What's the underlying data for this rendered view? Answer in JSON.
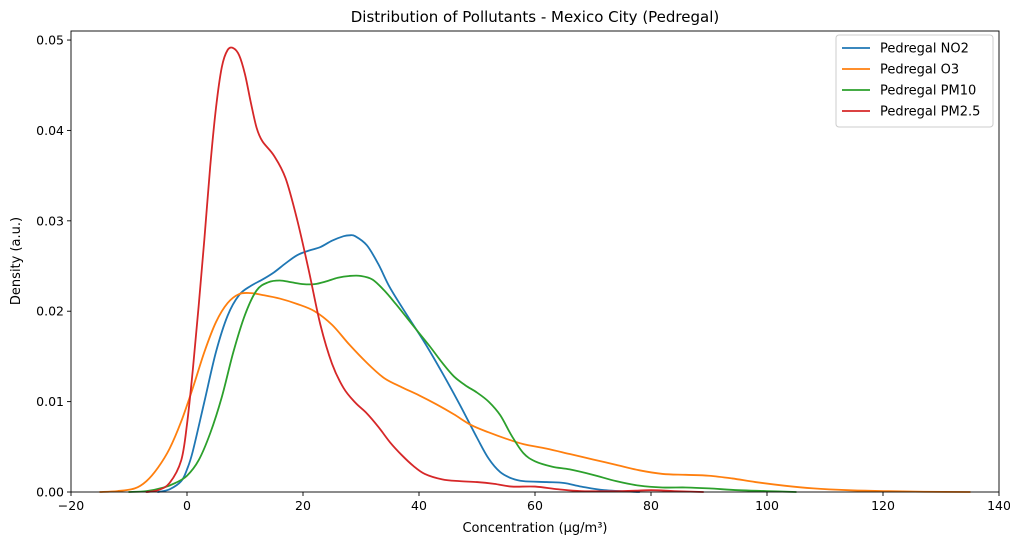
{
  "chart_data": {
    "type": "line",
    "title": "Distribution of Pollutants - Mexico City (Pedregal)",
    "xlabel": "Concentration (μg/m³)",
    "ylabel": "Density (a.u.)",
    "xlim": [
      -20,
      140
    ],
    "ylim": [
      0,
      0.051
    ],
    "xticks": [
      -20,
      0,
      20,
      40,
      60,
      80,
      100,
      120,
      140
    ],
    "xtick_labels": [
      "−20",
      "0",
      "20",
      "40",
      "60",
      "80",
      "100",
      "120",
      "140"
    ],
    "yticks": [
      0,
      0.01,
      0.02,
      0.03,
      0.04,
      0.05
    ],
    "ytick_labels": [
      "0.00",
      "0.01",
      "0.02",
      "0.03",
      "0.04",
      "0.05"
    ],
    "grid": false,
    "legend_position": "top-right",
    "series": [
      {
        "name": "Pedregal NO2",
        "color": "#1f77b4",
        "points": [
          [
            -5,
            0
          ],
          [
            -3,
            0.0003
          ],
          [
            -1,
            0.0012
          ],
          [
            0,
            0.0025
          ],
          [
            1,
            0.0045
          ],
          [
            3,
            0.01
          ],
          [
            5,
            0.0155
          ],
          [
            7,
            0.0195
          ],
          [
            9,
            0.0218
          ],
          [
            11,
            0.0228
          ],
          [
            13,
            0.0235
          ],
          [
            15,
            0.0243
          ],
          [
            17,
            0.0253
          ],
          [
            19,
            0.0262
          ],
          [
            21,
            0.0267
          ],
          [
            23,
            0.0271
          ],
          [
            25,
            0.0278
          ],
          [
            27,
            0.0283
          ],
          [
            28,
            0.0284
          ],
          [
            29,
            0.0283
          ],
          [
            31,
            0.0273
          ],
          [
            33,
            0.0252
          ],
          [
            35,
            0.0226
          ],
          [
            38,
            0.0195
          ],
          [
            41,
            0.0165
          ],
          [
            44,
            0.0132
          ],
          [
            47,
            0.0097
          ],
          [
            50,
            0.006
          ],
          [
            52,
            0.0037
          ],
          [
            54,
            0.0022
          ],
          [
            56,
            0.0015
          ],
          [
            58,
            0.0012
          ],
          [
            62,
            0.0011
          ],
          [
            65,
            0.001
          ],
          [
            68,
            0.0006
          ],
          [
            72,
            0.0002
          ],
          [
            78,
            0
          ]
        ]
      },
      {
        "name": "Pedregal O3",
        "color": "#ff7f0e",
        "points": [
          [
            -15,
            0
          ],
          [
            -12,
            0.0001
          ],
          [
            -9,
            0.0004
          ],
          [
            -7,
            0.0012
          ],
          [
            -5,
            0.0027
          ],
          [
            -3,
            0.0048
          ],
          [
            -1,
            0.0078
          ],
          [
            1,
            0.0115
          ],
          [
            3,
            0.0155
          ],
          [
            5,
            0.0188
          ],
          [
            7,
            0.0209
          ],
          [
            9,
            0.0219
          ],
          [
            11,
            0.022
          ],
          [
            13,
            0.0218
          ],
          [
            16,
            0.0214
          ],
          [
            19,
            0.0208
          ],
          [
            22,
            0.02
          ],
          [
            25,
            0.0185
          ],
          [
            28,
            0.0163
          ],
          [
            31,
            0.0143
          ],
          [
            34,
            0.0126
          ],
          [
            37,
            0.0116
          ],
          [
            40,
            0.0107
          ],
          [
            43,
            0.0097
          ],
          [
            46,
            0.0086
          ],
          [
            49,
            0.0074
          ],
          [
            52,
            0.0066
          ],
          [
            55,
            0.0059
          ],
          [
            58,
            0.0053
          ],
          [
            62,
            0.0048
          ],
          [
            66,
            0.0042
          ],
          [
            70,
            0.0036
          ],
          [
            74,
            0.003
          ],
          [
            78,
            0.0024
          ],
          [
            82,
            0.002
          ],
          [
            86,
            0.0019
          ],
          [
            90,
            0.0018
          ],
          [
            94,
            0.0015
          ],
          [
            98,
            0.0011
          ],
          [
            103,
            0.0007
          ],
          [
            108,
            0.0004
          ],
          [
            114,
            0.0002
          ],
          [
            120,
            0.0001
          ],
          [
            127,
            3e-05
          ],
          [
            135,
            0
          ]
        ]
      },
      {
        "name": "Pedregal PM10",
        "color": "#2ca02c",
        "points": [
          [
            -10,
            0
          ],
          [
            -7,
            0.0001
          ],
          [
            -4,
            0.0005
          ],
          [
            -2,
            0.001
          ],
          [
            0,
            0.0018
          ],
          [
            2,
            0.0035
          ],
          [
            4,
            0.0065
          ],
          [
            6,
            0.0105
          ],
          [
            8,
            0.0155
          ],
          [
            10,
            0.0196
          ],
          [
            12,
            0.0223
          ],
          [
            14,
            0.0232
          ],
          [
            16,
            0.0234
          ],
          [
            18,
            0.0232
          ],
          [
            20,
            0.023
          ],
          [
            22,
            0.023
          ],
          [
            24,
            0.0233
          ],
          [
            26,
            0.0237
          ],
          [
            28,
            0.0239
          ],
          [
            30,
            0.0239
          ],
          [
            32,
            0.0235
          ],
          [
            34,
            0.0223
          ],
          [
            36,
            0.0208
          ],
          [
            38,
            0.0192
          ],
          [
            40,
            0.0176
          ],
          [
            42,
            0.016
          ],
          [
            44,
            0.0143
          ],
          [
            46,
            0.0128
          ],
          [
            48,
            0.0118
          ],
          [
            50,
            0.011
          ],
          [
            52,
            0.01
          ],
          [
            54,
            0.0085
          ],
          [
            56,
            0.0062
          ],
          [
            58,
            0.0043
          ],
          [
            60,
            0.0034
          ],
          [
            63,
            0.0028
          ],
          [
            66,
            0.0025
          ],
          [
            70,
            0.0019
          ],
          [
            74,
            0.0012
          ],
          [
            78,
            0.0007
          ],
          [
            82,
            0.0005
          ],
          [
            86,
            0.0005
          ],
          [
            90,
            0.0004
          ],
          [
            95,
            0.0002
          ],
          [
            100,
            0.0001
          ],
          [
            105,
            0
          ]
        ]
      },
      {
        "name": "Pedregal PM2.5",
        "color": "#d62728",
        "points": [
          [
            -7,
            0
          ],
          [
            -5,
            0.0002
          ],
          [
            -3,
            0.001
          ],
          [
            -1,
            0.0035
          ],
          [
            0,
            0.0075
          ],
          [
            1,
            0.0135
          ],
          [
            2,
            0.0205
          ],
          [
            3,
            0.028
          ],
          [
            4,
            0.036
          ],
          [
            5,
            0.0425
          ],
          [
            6,
            0.047
          ],
          [
            7,
            0.0489
          ],
          [
            8,
            0.0491
          ],
          [
            9,
            0.0483
          ],
          [
            10,
            0.0462
          ],
          [
            11,
            0.0431
          ],
          [
            12,
            0.0403
          ],
          [
            13,
            0.0388
          ],
          [
            15,
            0.0372
          ],
          [
            17,
            0.0347
          ],
          [
            19,
            0.0301
          ],
          [
            21,
            0.0245
          ],
          [
            23,
            0.0185
          ],
          [
            25,
            0.0142
          ],
          [
            27,
            0.0115
          ],
          [
            29,
            0.0099
          ],
          [
            31,
            0.0087
          ],
          [
            33,
            0.0072
          ],
          [
            35,
            0.0055
          ],
          [
            37,
            0.0041
          ],
          [
            39,
            0.0029
          ],
          [
            41,
            0.002
          ],
          [
            44,
            0.0014
          ],
          [
            47,
            0.0012
          ],
          [
            50,
            0.0011
          ],
          [
            53,
            0.0009
          ],
          [
            56,
            0.0006
          ],
          [
            60,
            0.0006
          ],
          [
            64,
            0.0003
          ],
          [
            68,
            0.0001
          ],
          [
            75,
            0.0001
          ],
          [
            80,
            0.0002
          ],
          [
            84,
            0.0001
          ],
          [
            89,
            0
          ]
        ]
      }
    ]
  }
}
